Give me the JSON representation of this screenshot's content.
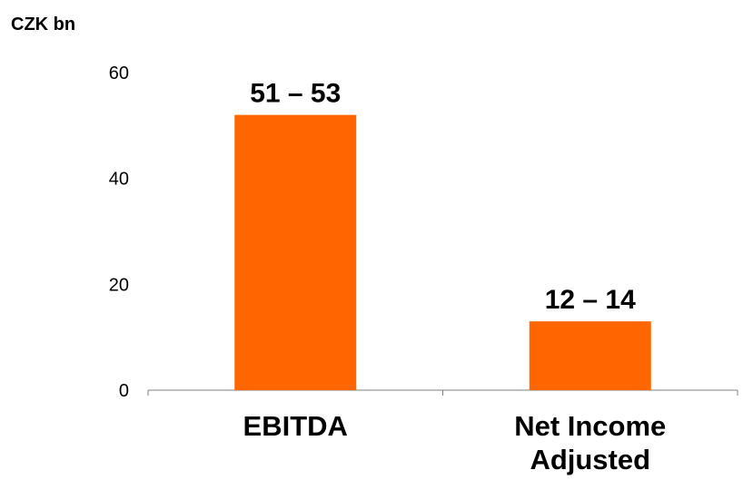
{
  "chart_data": {
    "type": "bar",
    "unit_label": "CZK bn",
    "categories": [
      "EBITDA",
      "Net Income Adjusted"
    ],
    "category_lines": [
      [
        "EBITDA"
      ],
      [
        "Net Income",
        "Adjusted"
      ]
    ],
    "values": [
      52,
      13
    ],
    "data_labels": [
      "51 – 53",
      "12 – 14"
    ],
    "yticks": [
      0,
      20,
      40,
      60
    ],
    "ylim": [
      0,
      60
    ],
    "bar_color": "#FF6600",
    "grid": false,
    "legend": "none"
  }
}
